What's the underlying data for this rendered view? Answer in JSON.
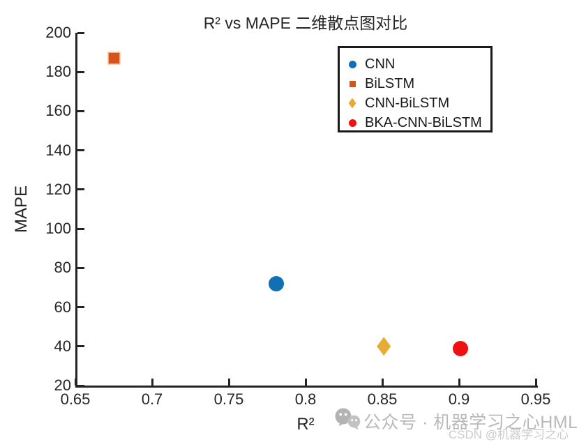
{
  "chart_data": {
    "type": "scatter",
    "title": "R² vs MAPE 二维散点图对比",
    "xlabel": "R²",
    "ylabel": "MAPE",
    "xlim": [
      0.65,
      0.95
    ],
    "ylim": [
      20,
      200
    ],
    "xticks": [
      0.65,
      0.7,
      0.75,
      0.8,
      0.85,
      0.9,
      0.95
    ],
    "xtick_labels": [
      "0.65",
      "0.7",
      "0.75",
      "0.8",
      "0.85",
      "0.9",
      "0.95"
    ],
    "yticks": [
      20,
      40,
      60,
      80,
      100,
      120,
      140,
      160,
      180,
      200
    ],
    "ytick_labels": [
      "20",
      "40",
      "60",
      "80",
      "100",
      "120",
      "140",
      "160",
      "180",
      "200"
    ],
    "grid": false,
    "legend_position": "top-right",
    "series": [
      {
        "name": "CNN",
        "marker": "circle",
        "color": "#1170B5",
        "edge_color": "#1170B5",
        "x": 0.781,
        "y": 72
      },
      {
        "name": "BiLSTM",
        "marker": "square",
        "color": "#D4551C",
        "edge_color": "#EFB07E",
        "x": 0.675,
        "y": 187
      },
      {
        "name": "CNN-BiLSTM",
        "marker": "diamond",
        "color": "#E6AC34",
        "edge_color": "#E6AC34",
        "x": 0.851,
        "y": 40
      },
      {
        "name": "BKA-CNN-BiLSTM",
        "marker": "circle",
        "color": "#EF1111",
        "edge_color": "#EF1111",
        "x": 0.901,
        "y": 39
      }
    ]
  },
  "colors": {
    "axis": "#242424",
    "text": "#262626",
    "legend_border": "#1a1a1a",
    "watermark_primary": "#b9b9b9",
    "watermark_secondary": "#cbcbcb"
  },
  "watermark": {
    "icon": "wechat-icon",
    "line1": "公众号 · 机器学习之心HML",
    "line2": "CSDN @机器学习之心"
  }
}
